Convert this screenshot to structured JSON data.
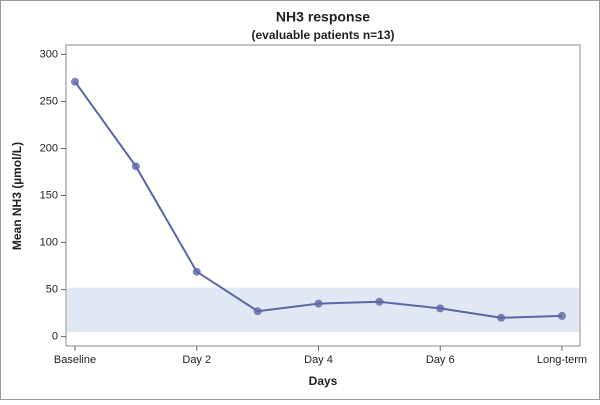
{
  "chart_data": {
    "type": "line",
    "title": "NH3 response",
    "subtitle": "(evaluable patients n=13)",
    "x_label": "Days",
    "y_label": "Mean NH3 (µmol/L)",
    "categories": [
      "Baseline",
      null,
      "Day 2",
      null,
      "Day 4",
      null,
      "Day 6",
      null,
      "Long-term"
    ],
    "series": [
      {
        "name": "Mean NH3",
        "color": "#5b66a6",
        "values": [
          271,
          181,
          69,
          27,
          35,
          37,
          30,
          20,
          22
        ]
      }
    ],
    "ylim": [
      -10,
      310
    ],
    "yticks": [
      0,
      50,
      100,
      150,
      200,
      250,
      300
    ],
    "reference_band": [
      5,
      52
    ],
    "band_color": "#dfe8f3"
  }
}
